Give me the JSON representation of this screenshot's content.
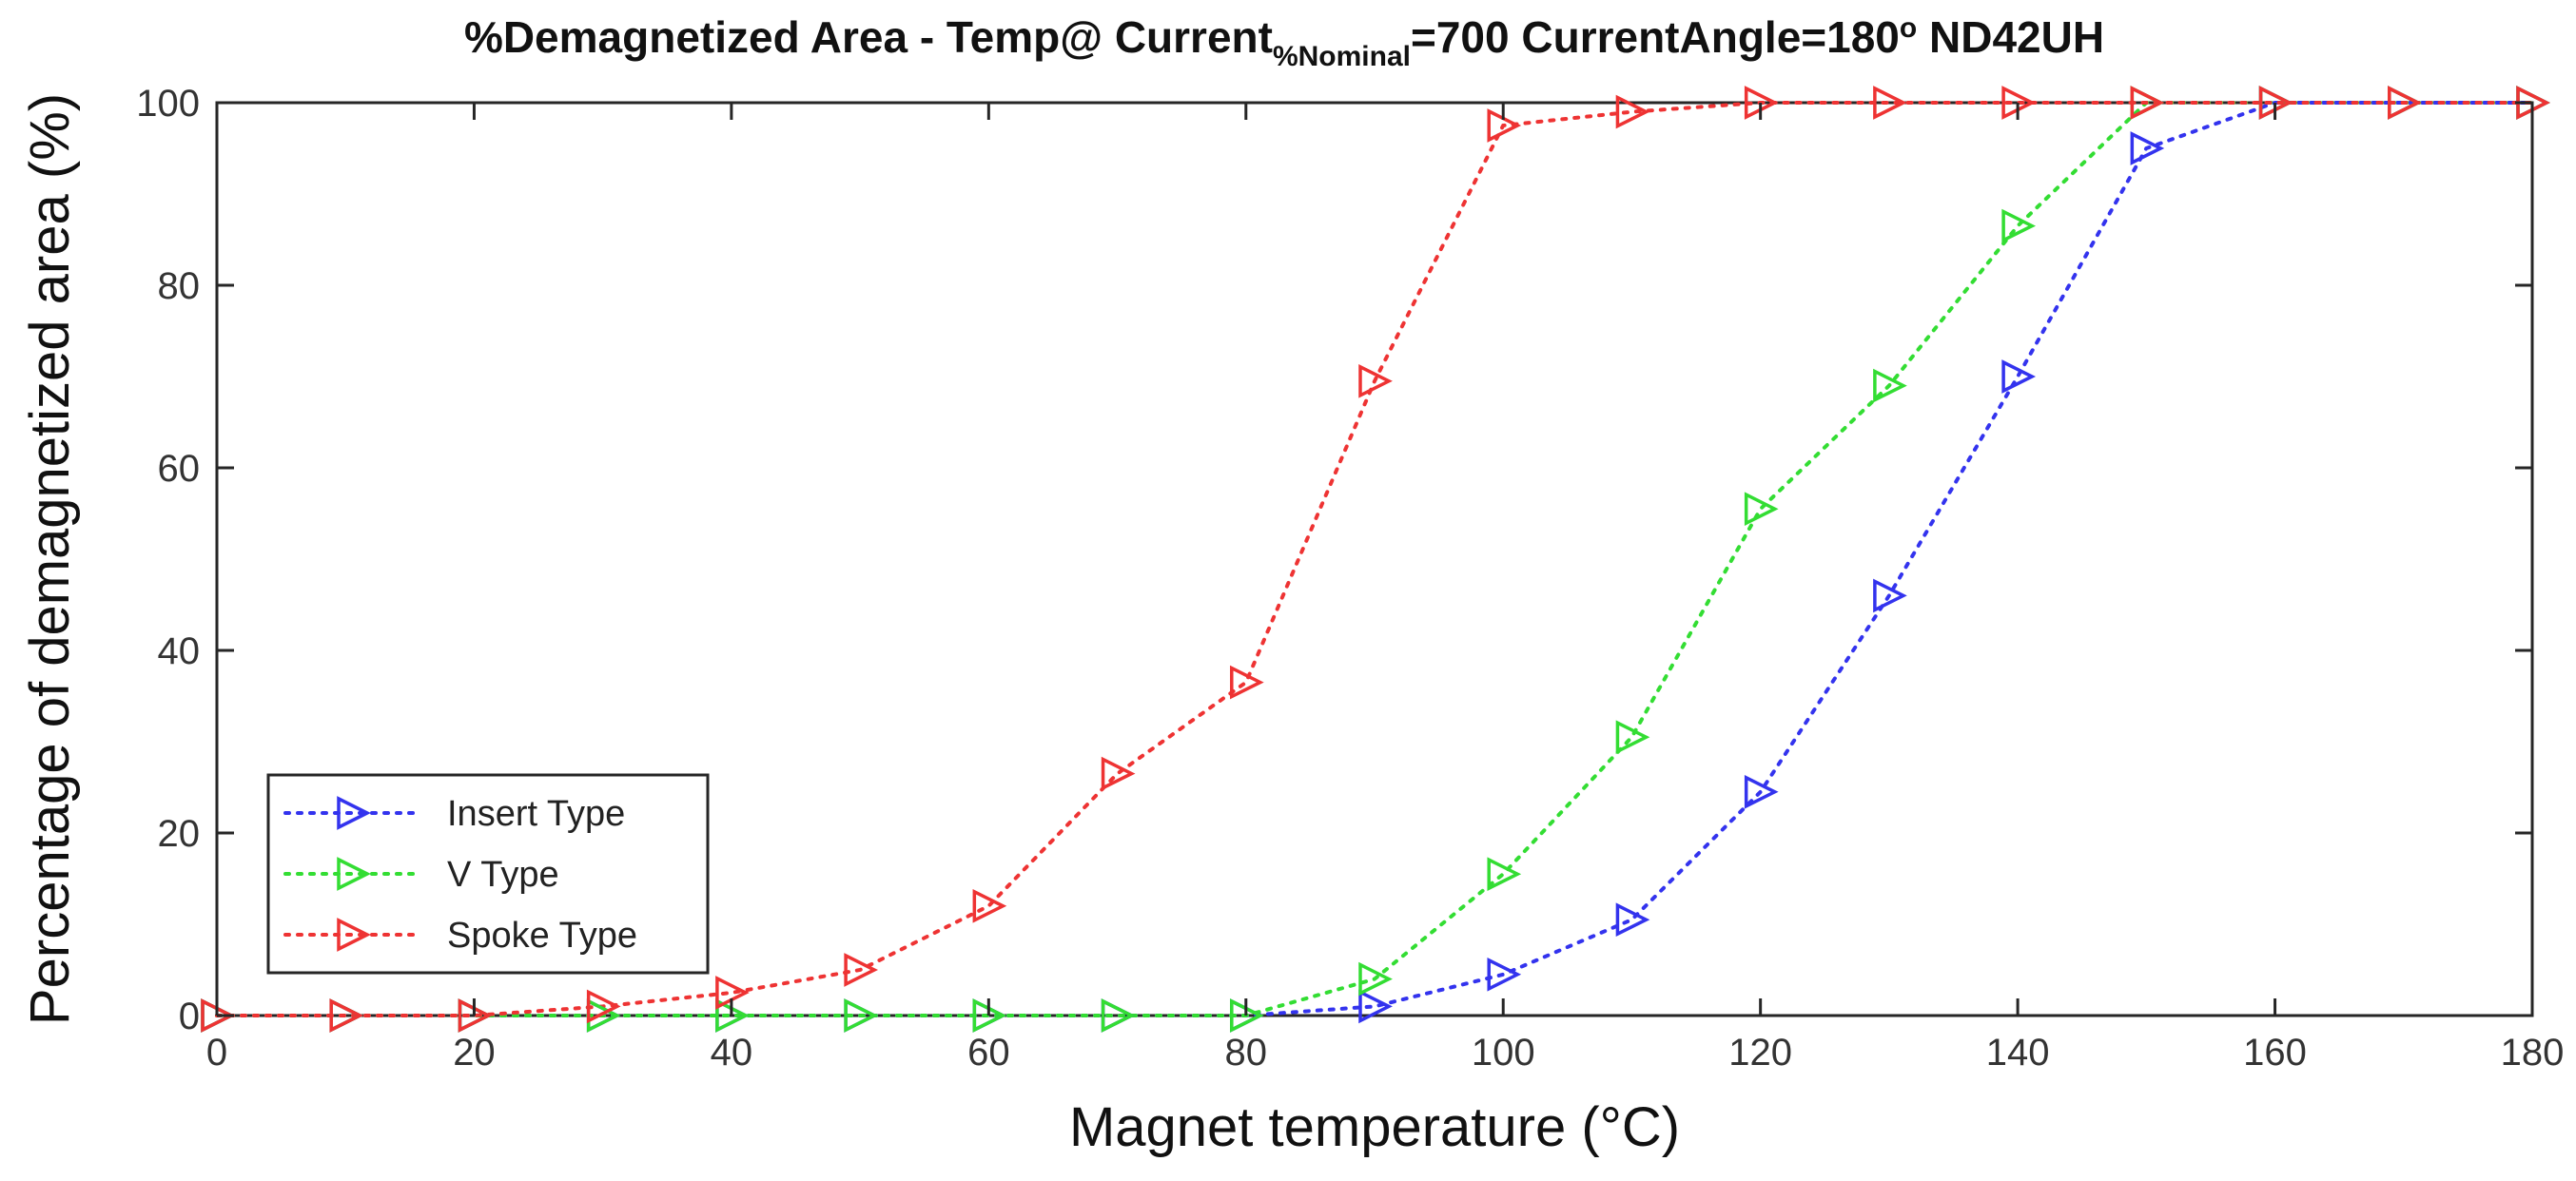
{
  "chart_data": {
    "type": "line",
    "title": {
      "part1": "%Demagnetized Area - Temp@ Current",
      "subscript": "%Nominal",
      "part2": "=700 CurrentAngle=180",
      "degree": "o",
      "part3": " ND42UH"
    },
    "xlabel": "Magnet temperature (°C)",
    "ylabel": "Percentage of demagnetized area (%)",
    "xlim": [
      0,
      180
    ],
    "ylim": [
      0,
      100
    ],
    "xticks": [
      "0",
      "20",
      "40",
      "60",
      "80",
      "100",
      "120",
      "140",
      "160",
      "180"
    ],
    "yticks": [
      "0",
      "20",
      "40",
      "60",
      "80",
      "100"
    ],
    "grid": false,
    "legend_position": "bottom-left",
    "marker": "triangle-right",
    "line_style": "dotted",
    "series": [
      {
        "name": "Insert Type",
        "color": "#3333ee",
        "points": [
          [
            0,
            0
          ],
          [
            10,
            0
          ],
          [
            20,
            0
          ],
          [
            30,
            0
          ],
          [
            40,
            0
          ],
          [
            50,
            0
          ],
          [
            60,
            0
          ],
          [
            70,
            0
          ],
          [
            80,
            0
          ],
          [
            90,
            1
          ],
          [
            100,
            4.5
          ],
          [
            110,
            10.5
          ],
          [
            120,
            24.5
          ],
          [
            130,
            46
          ],
          [
            140,
            70
          ],
          [
            150,
            95
          ],
          [
            160,
            100
          ],
          [
            170,
            100
          ],
          [
            180,
            100
          ]
        ]
      },
      {
        "name": "V Type",
        "color": "#33dd33",
        "points": [
          [
            0,
            0
          ],
          [
            10,
            0
          ],
          [
            20,
            0
          ],
          [
            30,
            0
          ],
          [
            40,
            0
          ],
          [
            50,
            0
          ],
          [
            60,
            0
          ],
          [
            70,
            0
          ],
          [
            80,
            0
          ],
          [
            90,
            4
          ],
          [
            100,
            15.5
          ],
          [
            110,
            30.5
          ],
          [
            120,
            55.5
          ],
          [
            130,
            69
          ],
          [
            140,
            86.5
          ],
          [
            150,
            100
          ],
          [
            160,
            100
          ],
          [
            170,
            100
          ],
          [
            180,
            100
          ]
        ]
      },
      {
        "name": "Spoke Type",
        "color": "#ee3333",
        "points": [
          [
            0,
            0
          ],
          [
            10,
            0
          ],
          [
            20,
            0
          ],
          [
            30,
            1
          ],
          [
            40,
            2.5
          ],
          [
            50,
            5
          ],
          [
            60,
            12
          ],
          [
            70,
            26.5
          ],
          [
            80,
            36.5
          ],
          [
            90,
            69.5
          ],
          [
            100,
            97.5
          ],
          [
            110,
            99
          ],
          [
            120,
            100
          ],
          [
            130,
            100
          ],
          [
            140,
            100
          ],
          [
            150,
            100
          ],
          [
            160,
            100
          ],
          [
            170,
            100
          ],
          [
            180,
            100
          ]
        ]
      }
    ]
  }
}
